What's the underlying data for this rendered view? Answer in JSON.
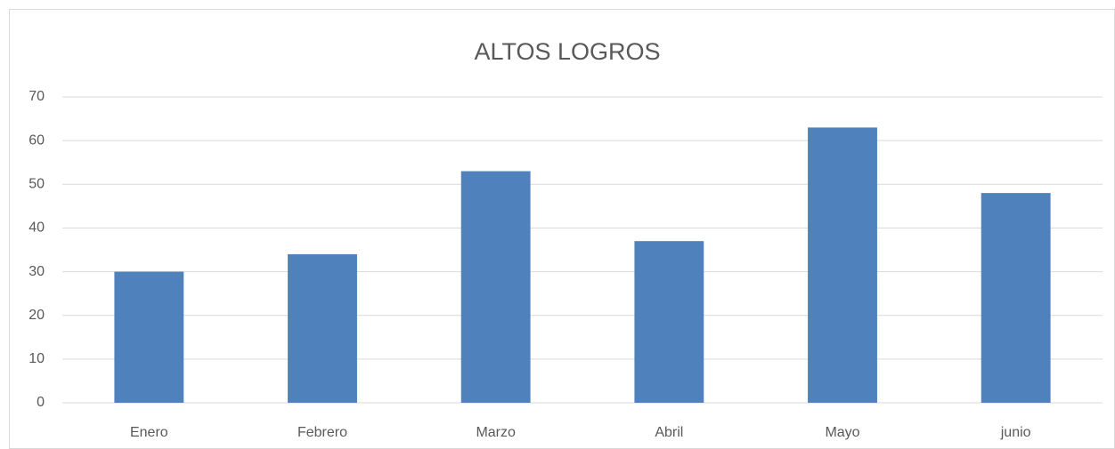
{
  "chart_data": {
    "type": "bar",
    "title": "ALTOS LOGROS",
    "categories": [
      "Enero",
      "Febrero",
      "Marzo",
      "Abril",
      "Mayo",
      "junio"
    ],
    "values": [
      30,
      34,
      53,
      37,
      63,
      48
    ],
    "color": "#4f81bd",
    "ylim": [
      0,
      70
    ],
    "yticks": [
      0,
      10,
      20,
      30,
      40,
      50,
      60,
      70
    ],
    "grid": true
  }
}
